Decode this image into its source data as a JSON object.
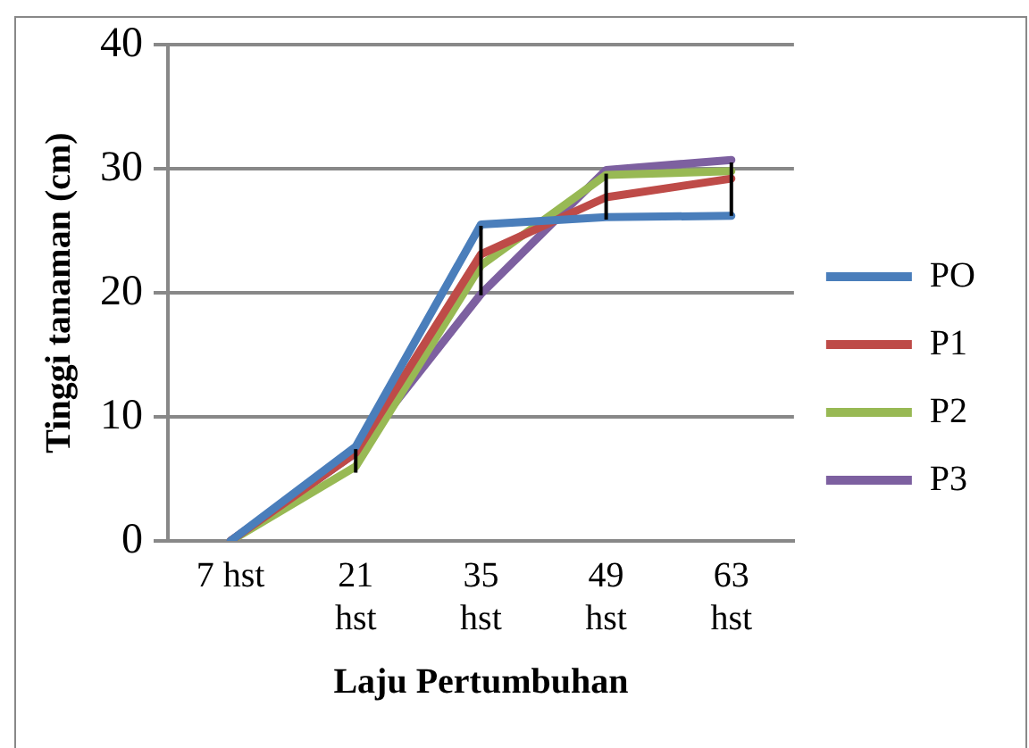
{
  "chart_data": {
    "type": "line",
    "xlabel": "Laju Pertumbuhan",
    "ylabel": "Tinggi tanaman (cm)",
    "categories": [
      "7 hst",
      "21 hst",
      "35 hst",
      "49 hst",
      "63 hst"
    ],
    "series": [
      {
        "name": "PO",
        "color": "#4a7ebb",
        "values": [
          0,
          7.6,
          25.5,
          26.1,
          26.2
        ]
      },
      {
        "name": "P1",
        "color": "#be4b48",
        "values": [
          0,
          7.1,
          23.1,
          27.7,
          29.2
        ],
        "errors": [
          null,
          [
            5.5,
            7.4
          ],
          [
            19.8,
            25.4
          ],
          [
            25.9,
            29.6
          ],
          [
            26.2,
            30.5
          ]
        ]
      },
      {
        "name": "P2",
        "color": "#98b954",
        "values": [
          0,
          6.0,
          22.2,
          29.5,
          29.8
        ]
      },
      {
        "name": "P3",
        "color": "#7d60a0",
        "values": [
          0,
          7.1,
          19.9,
          29.9,
          30.7
        ]
      }
    ],
    "ylim": [
      0,
      40
    ],
    "yticks": [
      0,
      10,
      20,
      30,
      40
    ],
    "grid": "y",
    "legend": "right",
    "marker": "none",
    "line_style": "solid"
  }
}
